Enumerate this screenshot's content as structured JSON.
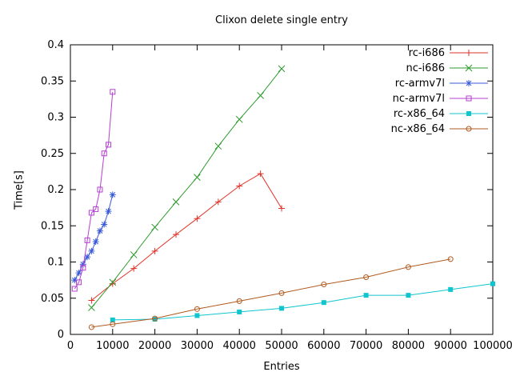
{
  "chart_data": {
    "type": "line",
    "title": "Clixon delete single entry",
    "xlabel": "Entries",
    "ylabel": "Time[s]",
    "xlim": [
      0,
      100000
    ],
    "ylim": [
      0,
      0.4
    ],
    "grid": false,
    "border": true,
    "legend_position": "top-right-inside",
    "background": "#ffffff",
    "text_color": "#000000",
    "xticks": [
      {
        "value": 0,
        "label": "0"
      },
      {
        "value": 10000,
        "label": "10000"
      },
      {
        "value": 20000,
        "label": "20000"
      },
      {
        "value": 30000,
        "label": "30000"
      },
      {
        "value": 40000,
        "label": "40000"
      },
      {
        "value": 50000,
        "label": "50000"
      },
      {
        "value": 60000,
        "label": "60000"
      },
      {
        "value": 70000,
        "label": "70000"
      },
      {
        "value": 80000,
        "label": "80000"
      },
      {
        "value": 90000,
        "label": "90000"
      },
      {
        "value": 100000,
        "label": "100000"
      }
    ],
    "yticks": [
      {
        "value": 0,
        "label": "0"
      },
      {
        "value": 0.05,
        "label": "0.05"
      },
      {
        "value": 0.1,
        "label": "0.1"
      },
      {
        "value": 0.15,
        "label": "0.15"
      },
      {
        "value": 0.2,
        "label": "0.2"
      },
      {
        "value": 0.25,
        "label": "0.25"
      },
      {
        "value": 0.3,
        "label": "0.3"
      },
      {
        "value": 0.35,
        "label": "0.35"
      },
      {
        "value": 0.4,
        "label": "0.4"
      }
    ],
    "series": [
      {
        "name": "rc-i686",
        "color": "#e03227",
        "marker": "plus",
        "x": [
          5000,
          10000,
          15000,
          20000,
          25000,
          30000,
          35000,
          40000,
          45000,
          50000
        ],
        "y": [
          0.047,
          0.07,
          0.091,
          0.115,
          0.138,
          0.16,
          0.183,
          0.205,
          0.222,
          0.174
        ]
      },
      {
        "name": "nc-i686",
        "color": "#2e9b2e",
        "marker": "cross",
        "x": [
          5000,
          10000,
          15000,
          20000,
          25000,
          30000,
          35000,
          40000,
          45000,
          50000
        ],
        "y": [
          0.037,
          0.072,
          0.11,
          0.148,
          0.183,
          0.217,
          0.26,
          0.297,
          0.33,
          0.367
        ]
      },
      {
        "name": "rc-armv7l",
        "color": "#3959d9",
        "marker": "asterisk",
        "x": [
          1000,
          2000,
          3000,
          4000,
          5000,
          6000,
          7000,
          8000,
          9000,
          10000
        ],
        "y": [
          0.075,
          0.085,
          0.097,
          0.107,
          0.115,
          0.128,
          0.143,
          0.152,
          0.17,
          0.193
        ]
      },
      {
        "name": "nc-armv7l",
        "color": "#b43fd1",
        "marker": "square-open",
        "x": [
          1000,
          2000,
          3000,
          4000,
          5000,
          6000,
          7000,
          8000,
          9000,
          10000
        ],
        "y": [
          0.063,
          0.072,
          0.092,
          0.13,
          0.168,
          0.173,
          0.2,
          0.25,
          0.262,
          0.335
        ]
      },
      {
        "name": "rc-x86_64",
        "color": "#10c5ce",
        "marker": "square-filled",
        "x": [
          10000,
          20000,
          30000,
          40000,
          50000,
          60000,
          70000,
          80000,
          90000,
          100000
        ],
        "y": [
          0.02,
          0.021,
          0.026,
          0.031,
          0.036,
          0.044,
          0.054,
          0.054,
          0.062,
          0.07
        ]
      },
      {
        "name": "nc-x86_64",
        "color": "#b05a1f",
        "marker": "circle-open",
        "x": [
          5000,
          10000,
          20000,
          30000,
          40000,
          50000,
          60000,
          70000,
          80000,
          90000
        ],
        "y": [
          0.01,
          0.014,
          0.022,
          0.035,
          0.046,
          0.057,
          0.069,
          0.079,
          0.093,
          0.104
        ]
      }
    ]
  }
}
